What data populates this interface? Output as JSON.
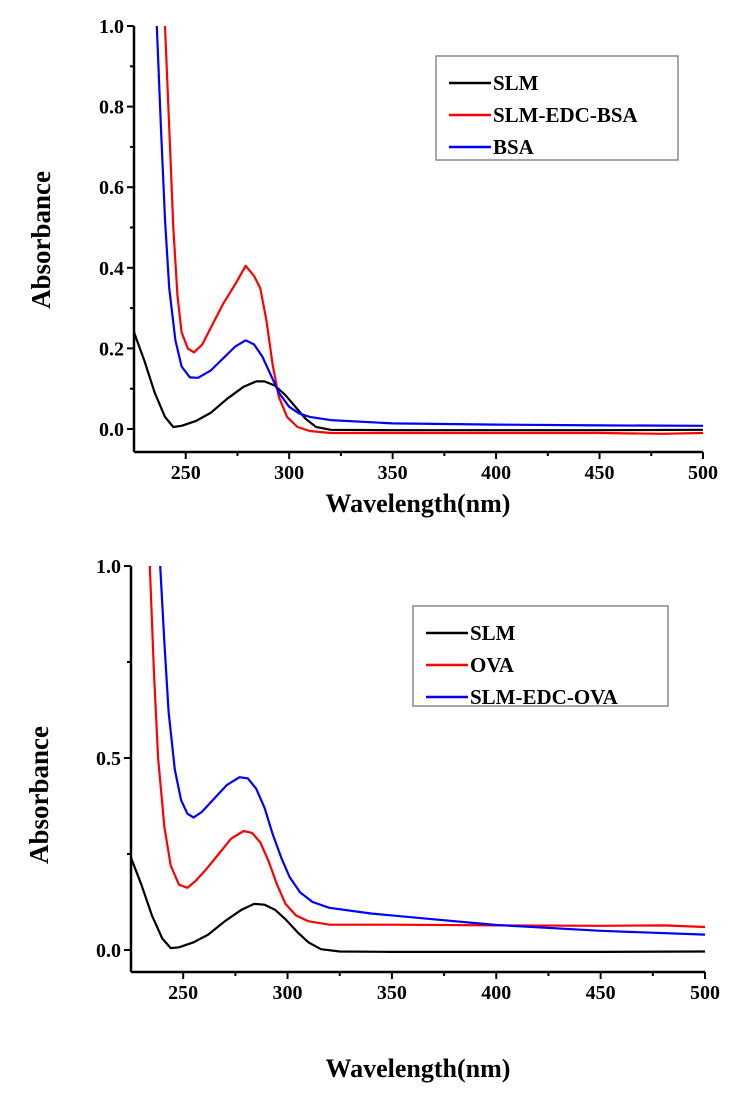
{
  "chart_data": [
    {
      "type": "line",
      "xlabel": "Wavelength(nm)",
      "ylabel": "Absorbance",
      "xlim": [
        225,
        500
      ],
      "ylim": [
        -0.05,
        1.0
      ],
      "xticks": [
        "250",
        "300",
        "350",
        "400",
        "450",
        "500"
      ],
      "yticks": [
        "0.0",
        "0.2",
        "0.4",
        "0.6",
        "0.8",
        "1.0"
      ],
      "grid": false,
      "legend": "top-right",
      "series": [
        {
          "name": "SLM",
          "color": "#000000",
          "points": [
            [
              225,
              0.24
            ],
            [
              230,
              0.17
            ],
            [
              235,
              0.09
            ],
            [
              240,
              0.03
            ],
            [
              244,
              0.005
            ],
            [
              248,
              0.008
            ],
            [
              255,
              0.02
            ],
            [
              262,
              0.04
            ],
            [
              270,
              0.075
            ],
            [
              278,
              0.105
            ],
            [
              284,
              0.118
            ],
            [
              288,
              0.118
            ],
            [
              293,
              0.108
            ],
            [
              298,
              0.085
            ],
            [
              303,
              0.055
            ],
            [
              308,
              0.025
            ],
            [
              313,
              0.005
            ],
            [
              320,
              -0.002
            ],
            [
              350,
              -0.003
            ],
            [
              400,
              -0.003
            ],
            [
              450,
              -0.003
            ],
            [
              500,
              -0.002
            ]
          ]
        },
        {
          "name": "SLM-EDC-BSA",
          "color": "#ff0000",
          "points": [
            [
              240,
              1.0
            ],
            [
              242,
              0.75
            ],
            [
              244,
              0.5
            ],
            [
              246,
              0.33
            ],
            [
              248,
              0.24
            ],
            [
              251,
              0.2
            ],
            [
              254,
              0.19
            ],
            [
              258,
              0.21
            ],
            [
              263,
              0.26
            ],
            [
              268,
              0.31
            ],
            [
              274,
              0.36
            ],
            [
              279,
              0.405
            ],
            [
              283,
              0.38
            ],
            [
              286,
              0.35
            ],
            [
              289,
              0.27
            ],
            [
              292,
              0.16
            ],
            [
              295,
              0.08
            ],
            [
              299,
              0.03
            ],
            [
              304,
              0.005
            ],
            [
              310,
              -0.005
            ],
            [
              320,
              -0.01
            ],
            [
              350,
              -0.01
            ],
            [
              400,
              -0.01
            ],
            [
              450,
              -0.01
            ],
            [
              480,
              -0.012
            ],
            [
              500,
              -0.01
            ]
          ]
        },
        {
          "name": "BSA",
          "color": "#0000ff",
          "points": [
            [
              236,
              1.0
            ],
            [
              238,
              0.75
            ],
            [
              240,
              0.52
            ],
            [
              242,
              0.35
            ],
            [
              245,
              0.22
            ],
            [
              248,
              0.155
            ],
            [
              252,
              0.128
            ],
            [
              256,
              0.127
            ],
            [
              262,
              0.145
            ],
            [
              268,
              0.175
            ],
            [
              274,
              0.205
            ],
            [
              279,
              0.22
            ],
            [
              283,
              0.21
            ],
            [
              287,
              0.18
            ],
            [
              291,
              0.135
            ],
            [
              295,
              0.09
            ],
            [
              300,
              0.055
            ],
            [
              305,
              0.038
            ],
            [
              310,
              0.03
            ],
            [
              320,
              0.022
            ],
            [
              350,
              0.014
            ],
            [
              400,
              0.011
            ],
            [
              450,
              0.009
            ],
            [
              500,
              0.008
            ]
          ]
        }
      ]
    },
    {
      "type": "line",
      "xlabel": "Wavelength(nm)",
      "ylabel": "Absorbance",
      "xlim": [
        225,
        500
      ],
      "ylim": [
        -0.05,
        1.0
      ],
      "xticks": [
        "250",
        "300",
        "350",
        "400",
        "450",
        "500"
      ],
      "yticks": [
        "0.0",
        "0.5",
        "1.0"
      ],
      "grid": false,
      "legend": "top-right",
      "series": [
        {
          "name": "SLM",
          "color": "#000000",
          "points": [
            [
              225,
              0.24
            ],
            [
              230,
              0.17
            ],
            [
              235,
              0.09
            ],
            [
              240,
              0.03
            ],
            [
              244,
              0.005
            ],
            [
              248,
              0.007
            ],
            [
              255,
              0.02
            ],
            [
              262,
              0.04
            ],
            [
              270,
              0.075
            ],
            [
              278,
              0.105
            ],
            [
              284,
              0.12
            ],
            [
              289,
              0.118
            ],
            [
              294,
              0.105
            ],
            [
              299,
              0.08
            ],
            [
              305,
              0.045
            ],
            [
              310,
              0.02
            ],
            [
              316,
              0.002
            ],
            [
              325,
              -0.004
            ],
            [
              350,
              -0.005
            ],
            [
              400,
              -0.005
            ],
            [
              450,
              -0.005
            ],
            [
              500,
              -0.004
            ]
          ]
        },
        {
          "name": "OVA",
          "color": "#ff0000",
          "points": [
            [
              234,
              1.0
            ],
            [
              236,
              0.72
            ],
            [
              238,
              0.5
            ],
            [
              241,
              0.32
            ],
            [
              244,
              0.22
            ],
            [
              248,
              0.17
            ],
            [
              252,
              0.162
            ],
            [
              256,
              0.18
            ],
            [
              261,
              0.21
            ],
            [
              267,
              0.25
            ],
            [
              273,
              0.29
            ],
            [
              279,
              0.31
            ],
            [
              283,
              0.305
            ],
            [
              287,
              0.28
            ],
            [
              291,
              0.23
            ],
            [
              295,
              0.17
            ],
            [
              299,
              0.12
            ],
            [
              304,
              0.09
            ],
            [
              310,
              0.075
            ],
            [
              320,
              0.066
            ],
            [
              350,
              0.066
            ],
            [
              400,
              0.064
            ],
            [
              450,
              0.063
            ],
            [
              480,
              0.064
            ],
            [
              500,
              0.06
            ]
          ]
        },
        {
          "name": "SLM-EDC-OVA",
          "color": "#0000ff",
          "points": [
            [
              239,
              1.0
            ],
            [
              241,
              0.8
            ],
            [
              243,
              0.62
            ],
            [
              246,
              0.47
            ],
            [
              249,
              0.39
            ],
            [
              252,
              0.355
            ],
            [
              255,
              0.345
            ],
            [
              259,
              0.36
            ],
            [
              265,
              0.395
            ],
            [
              271,
              0.43
            ],
            [
              277,
              0.45
            ],
            [
              281,
              0.447
            ],
            [
              285,
              0.42
            ],
            [
              289,
              0.37
            ],
            [
              293,
              0.3
            ],
            [
              297,
              0.24
            ],
            [
              301,
              0.19
            ],
            [
              306,
              0.15
            ],
            [
              312,
              0.125
            ],
            [
              320,
              0.11
            ],
            [
              340,
              0.095
            ],
            [
              370,
              0.08
            ],
            [
              400,
              0.065
            ],
            [
              450,
              0.05
            ],
            [
              500,
              0.04
            ]
          ]
        }
      ]
    }
  ]
}
